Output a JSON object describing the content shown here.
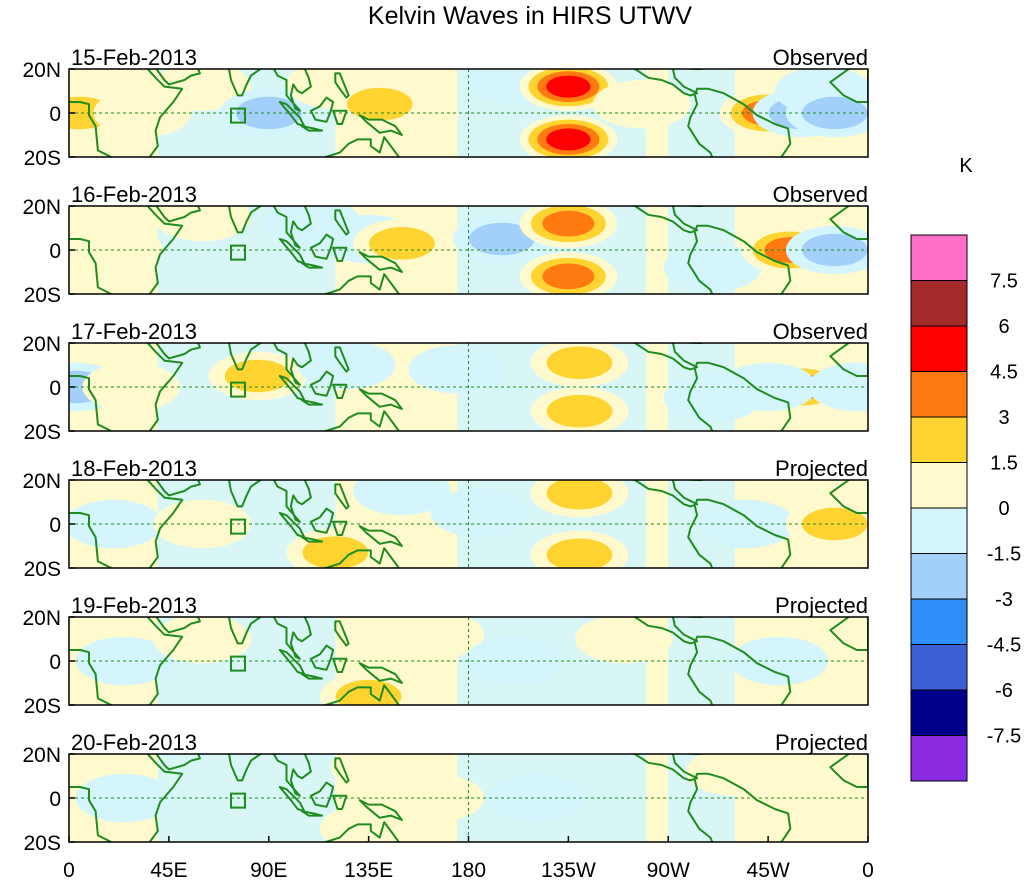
{
  "title": "Kelvin Waves in HIRS UTWV",
  "panels": [
    {
      "date": "15-Feb-2013",
      "status": "Observed"
    },
    {
      "date": "16-Feb-2013",
      "status": "Observed"
    },
    {
      "date": "17-Feb-2013",
      "status": "Observed"
    },
    {
      "date": "18-Feb-2013",
      "status": "Projected"
    },
    {
      "date": "19-Feb-2013",
      "status": "Projected"
    },
    {
      "date": "20-Feb-2013",
      "status": "Projected"
    }
  ],
  "lat_labels": [
    "20N",
    "0",
    "20S"
  ],
  "lon_labels": [
    "0",
    "45E",
    "90E",
    "135E",
    "180",
    "135W",
    "90W",
    "45W",
    "0"
  ],
  "colorbar": {
    "units": "K",
    "levels": [
      "7.5",
      "6",
      "4.5",
      "3",
      "1.5",
      "0",
      "-1.5",
      "-3",
      "-4.5",
      "-6",
      "-7.5"
    ],
    "colors": [
      "#ff6ec7",
      "#a52a2a",
      "#ff0000",
      "#ff7a10",
      "#ffd330",
      "#fffacd",
      "#d5f5fc",
      "#a3d0fa",
      "#2e8ff8",
      "#3e5fd8",
      "#00008b",
      "#8a2be2"
    ]
  },
  "chart_data": {
    "type": "heatmap",
    "title": "Kelvin Waves in HIRS UTWV",
    "units": "K",
    "xlim": [
      0,
      360
    ],
    "ylim": [
      -20,
      20
    ],
    "anomalies": [
      {
        "panel": 0,
        "blobs": [
          {
            "lon": 5,
            "lat": 0,
            "val": 2
          },
          {
            "lon": 33,
            "lat": 0,
            "val": 1
          },
          {
            "lon": 60,
            "lat": 12,
            "val": 1
          },
          {
            "lon": 90,
            "lat": 0,
            "val": -3
          },
          {
            "lon": 120,
            "lat": 13,
            "val": 1
          },
          {
            "lon": 140,
            "lat": 4,
            "val": 2
          },
          {
            "lon": 200,
            "lat": 15,
            "val": -1.5
          },
          {
            "lon": 225,
            "lat": 12,
            "val": 5
          },
          {
            "lon": 225,
            "lat": -12,
            "val": 5
          },
          {
            "lon": 258,
            "lat": 4,
            "val": 1
          },
          {
            "lon": 315,
            "lat": 0,
            "val": 4
          },
          {
            "lon": 330,
            "lat": 0,
            "val": -3
          },
          {
            "lon": 340,
            "lat": 10,
            "val": -1.5
          },
          {
            "lon": 345,
            "lat": 0,
            "val": -3
          }
        ]
      },
      {
        "panel": 1,
        "blobs": [
          {
            "lon": 20,
            "lat": 0,
            "val": 1
          },
          {
            "lon": 60,
            "lat": 15,
            "val": 1
          },
          {
            "lon": 110,
            "lat": 12,
            "val": -1.5
          },
          {
            "lon": 135,
            "lat": 5,
            "val": -1.5
          },
          {
            "lon": 150,
            "lat": 3,
            "val": 2
          },
          {
            "lon": 195,
            "lat": 5,
            "val": -2
          },
          {
            "lon": 225,
            "lat": 12,
            "val": 4
          },
          {
            "lon": 225,
            "lat": -12,
            "val": 4
          },
          {
            "lon": 290,
            "lat": -8,
            "val": -1.5
          },
          {
            "lon": 325,
            "lat": 0,
            "val": 4
          },
          {
            "lon": 345,
            "lat": 0,
            "val": -3
          }
        ]
      },
      {
        "panel": 2,
        "blobs": [
          {
            "lon": 3,
            "lat": 0,
            "val": -3
          },
          {
            "lon": 28,
            "lat": 0,
            "val": 1
          },
          {
            "lon": 85,
            "lat": 5,
            "val": 2
          },
          {
            "lon": 125,
            "lat": 10,
            "val": -1.5
          },
          {
            "lon": 175,
            "lat": 8,
            "val": -1.5
          },
          {
            "lon": 230,
            "lat": 11,
            "val": 3
          },
          {
            "lon": 230,
            "lat": -11,
            "val": 3
          },
          {
            "lon": 290,
            "lat": -5,
            "val": -1.5
          },
          {
            "lon": 330,
            "lat": 0,
            "val": 4
          },
          {
            "lon": 315,
            "lat": 0,
            "val": -1.5
          },
          {
            "lon": 355,
            "lat": 0,
            "val": -1.5
          }
        ]
      },
      {
        "panel": 3,
        "blobs": [
          {
            "lon": 20,
            "lat": 0,
            "val": -1.5
          },
          {
            "lon": 60,
            "lat": 0,
            "val": 1
          },
          {
            "lon": 120,
            "lat": -13,
            "val": 2
          },
          {
            "lon": 150,
            "lat": 15,
            "val": -1.5
          },
          {
            "lon": 185,
            "lat": 5,
            "val": -1.5
          },
          {
            "lon": 230,
            "lat": 14,
            "val": 2
          },
          {
            "lon": 230,
            "lat": -14,
            "val": 2
          },
          {
            "lon": 305,
            "lat": 0,
            "val": -1.5
          },
          {
            "lon": 345,
            "lat": 0,
            "val": 2
          }
        ]
      },
      {
        "panel": 4,
        "blobs": [
          {
            "lon": 25,
            "lat": 0,
            "val": -1.2
          },
          {
            "lon": 60,
            "lat": 10,
            "val": 0.6
          },
          {
            "lon": 135,
            "lat": -16,
            "val": 2
          },
          {
            "lon": 165,
            "lat": 12,
            "val": 0.8
          },
          {
            "lon": 200,
            "lat": 0,
            "val": -0.8
          },
          {
            "lon": 250,
            "lat": 10,
            "val": 0.6
          },
          {
            "lon": 320,
            "lat": 0,
            "val": -1.2
          }
        ]
      },
      {
        "panel": 5,
        "blobs": [
          {
            "lon": 25,
            "lat": 0,
            "val": -0.8
          },
          {
            "lon": 135,
            "lat": -14,
            "val": 1
          },
          {
            "lon": 140,
            "lat": 14,
            "val": 0.6
          },
          {
            "lon": 165,
            "lat": 0,
            "val": 0.6
          },
          {
            "lon": 210,
            "lat": 0,
            "val": -0.8
          },
          {
            "lon": 300,
            "lat": 12,
            "val": 0.6
          }
        ]
      }
    ]
  }
}
